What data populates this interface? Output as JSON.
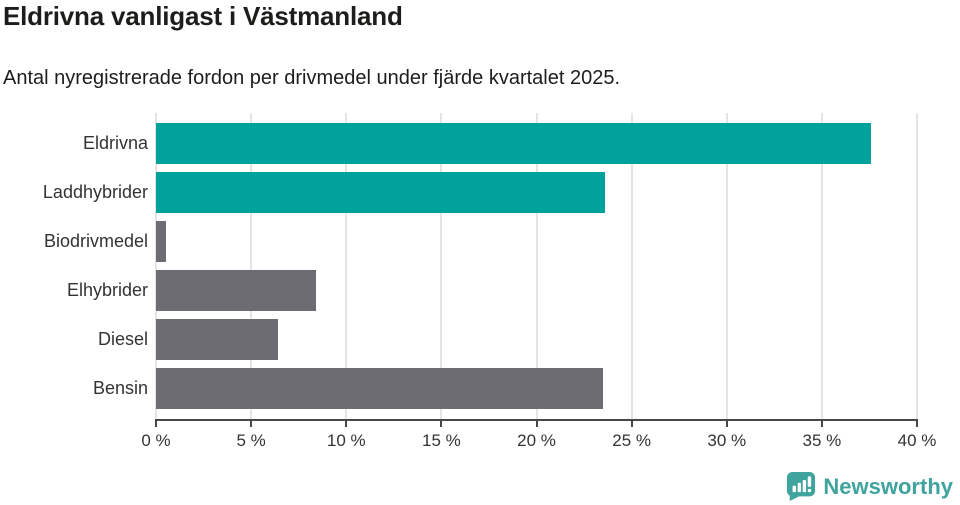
{
  "page": {
    "title": "Eldrivna vanligast i Västmanland",
    "subtitle": "Antal nyregistrerade fordon per drivmedel under fjärde kvartalet 2025."
  },
  "chart_data": {
    "type": "bar",
    "orientation": "horizontal",
    "title": "Eldrivna vanligast i Västmanland",
    "subtitle": "Antal nyregistrerade fordon per drivmedel under fjärde kvartalet 2025.",
    "categories": [
      "Eldrivna",
      "Laddhybrider",
      "Biodrivmedel",
      "Elhybrider",
      "Diesel",
      "Bensin"
    ],
    "values": [
      37.6,
      23.6,
      0.5,
      8.4,
      6.4,
      23.5
    ],
    "unit": "%",
    "bar_colors": [
      "#00a29b",
      "#00a29b",
      "#6d6c72",
      "#6d6c72",
      "#6d6c72",
      "#6d6c72"
    ],
    "xlim": [
      0,
      40
    ],
    "x_ticks": [
      0,
      5,
      10,
      15,
      20,
      25,
      30,
      35,
      40
    ],
    "x_tick_labels": [
      "0 %",
      "5 %",
      "10 %",
      "15 %",
      "20 %",
      "25 %",
      "30 %",
      "35 %",
      "40 %"
    ],
    "grid": true,
    "legend": false
  },
  "footer": {
    "brand": "Newsworthy"
  },
  "colors": {
    "accent_teal": "#00a29b",
    "bar_gray": "#6d6c72",
    "grid": "#e2e4e5",
    "axis": "#474747",
    "label_text": "#333333",
    "title_text": "#1d1d1b",
    "logo_teal": "#3fa39e"
  }
}
